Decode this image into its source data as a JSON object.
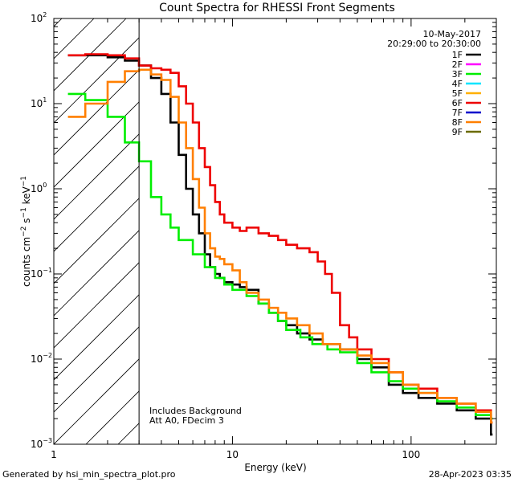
{
  "chart_data": {
    "type": "line",
    "title": "Count Spectra for RHESSI Front Segments",
    "xlabel": "Energy (keV)",
    "ylabel_parts": {
      "base": "counts cm",
      "exp1": "−2",
      "mid1": " s",
      "exp2": "−1",
      "mid2": " keV",
      "exp3": "−1"
    },
    "xscale": "log",
    "yscale": "log",
    "xlim": [
      1,
      300
    ],
    "ylim": [
      0.001,
      100
    ],
    "x_ticks": [
      {
        "value": 1,
        "label": "1"
      },
      {
        "value": 10,
        "label": "10"
      },
      {
        "value": 100,
        "label": "100"
      }
    ],
    "y_ticks": [
      {
        "value": 0.001,
        "base": "10",
        "exp": "−3"
      },
      {
        "value": 0.01,
        "base": "10",
        "exp": "−2"
      },
      {
        "value": 0.1,
        "base": "10",
        "exp": "−1"
      },
      {
        "value": 1,
        "base": "10",
        "exp": "0"
      },
      {
        "value": 10,
        "base": "10",
        "exp": "1"
      },
      {
        "value": 100,
        "base": "10",
        "exp": "2"
      }
    ],
    "date": "10-May-2017",
    "time_range": "20:29:00 to 20:30:00",
    "shaded_region": {
      "x_from": 1,
      "x_to": 3,
      "style": "hatched"
    },
    "annotations": [
      "Includes Background",
      "Att A0, FDecim 3"
    ],
    "legend": [
      {
        "name": "1F",
        "color": "#000000"
      },
      {
        "name": "2F",
        "color": "#ff00ff"
      },
      {
        "name": "3F",
        "color": "#00ee00"
      },
      {
        "name": "4F",
        "color": "#00e5ff"
      },
      {
        "name": "5F",
        "color": "#ffb000"
      },
      {
        "name": "6F",
        "color": "#ee0000"
      },
      {
        "name": "7F",
        "color": "#0000cc"
      },
      {
        "name": "8F",
        "color": "#ff7f00"
      },
      {
        "name": "9F",
        "color": "#6b6b00"
      }
    ],
    "series": [
      {
        "name": "1F",
        "color": "#000000",
        "points": [
          [
            1.2,
            37
          ],
          [
            1.5,
            37
          ],
          [
            2,
            35
          ],
          [
            2.5,
            32
          ],
          [
            3,
            28
          ],
          [
            3.5,
            20
          ],
          [
            4,
            13
          ],
          [
            4.5,
            6
          ],
          [
            5,
            2.5
          ],
          [
            5.5,
            1.0
          ],
          [
            6,
            0.5
          ],
          [
            6.5,
            0.3
          ],
          [
            7,
            0.17
          ],
          [
            7.5,
            0.12
          ],
          [
            8,
            0.1
          ],
          [
            8.5,
            0.09
          ],
          [
            9,
            0.08
          ],
          [
            10,
            0.075
          ],
          [
            11,
            0.07
          ],
          [
            12,
            0.065
          ],
          [
            14,
            0.045
          ],
          [
            16,
            0.035
          ],
          [
            18,
            0.028
          ],
          [
            20,
            0.025
          ],
          [
            23,
            0.02
          ],
          [
            27,
            0.017
          ],
          [
            32,
            0.015
          ],
          [
            40,
            0.013
          ],
          [
            50,
            0.01
          ],
          [
            60,
            0.008
          ],
          [
            75,
            0.005
          ],
          [
            90,
            0.004
          ],
          [
            110,
            0.0035
          ],
          [
            140,
            0.003
          ],
          [
            180,
            0.0025
          ],
          [
            230,
            0.002
          ],
          [
            280,
            0.0013
          ]
        ]
      },
      {
        "name": "3F",
        "color": "#00ee00",
        "points": [
          [
            1.2,
            13
          ],
          [
            1.5,
            11
          ],
          [
            2,
            7
          ],
          [
            2.5,
            3.5
          ],
          [
            3,
            2.1
          ],
          [
            3.5,
            0.8
          ],
          [
            4,
            0.5
          ],
          [
            4.5,
            0.35
          ],
          [
            5,
            0.25
          ],
          [
            6,
            0.17
          ],
          [
            7,
            0.12
          ],
          [
            8,
            0.09
          ],
          [
            9,
            0.075
          ],
          [
            10,
            0.065
          ],
          [
            12,
            0.055
          ],
          [
            14,
            0.045
          ],
          [
            16,
            0.035
          ],
          [
            18,
            0.028
          ],
          [
            20,
            0.022
          ],
          [
            24,
            0.018
          ],
          [
            28,
            0.015
          ],
          [
            34,
            0.013
          ],
          [
            40,
            0.012
          ],
          [
            50,
            0.009
          ],
          [
            60,
            0.007
          ],
          [
            75,
            0.0055
          ],
          [
            90,
            0.0045
          ],
          [
            110,
            0.004
          ],
          [
            140,
            0.0032
          ],
          [
            180,
            0.0027
          ],
          [
            230,
            0.0022
          ],
          [
            280,
            0.002
          ]
        ]
      },
      {
        "name": "6F",
        "color": "#ee0000",
        "points": [
          [
            1.2,
            37
          ],
          [
            1.5,
            38
          ],
          [
            2,
            37
          ],
          [
            2.5,
            34
          ],
          [
            3,
            28
          ],
          [
            3.5,
            26
          ],
          [
            4,
            25
          ],
          [
            4.5,
            23
          ],
          [
            5,
            16
          ],
          [
            5.5,
            10
          ],
          [
            6,
            6
          ],
          [
            6.5,
            3
          ],
          [
            7,
            1.8
          ],
          [
            7.5,
            1.1
          ],
          [
            8,
            0.7
          ],
          [
            8.5,
            0.5
          ],
          [
            9,
            0.4
          ],
          [
            10,
            0.35
          ],
          [
            11,
            0.32
          ],
          [
            12,
            0.35
          ],
          [
            14,
            0.3
          ],
          [
            16,
            0.28
          ],
          [
            18,
            0.25
          ],
          [
            20,
            0.22
          ],
          [
            23,
            0.2
          ],
          [
            27,
            0.18
          ],
          [
            30,
            0.14
          ],
          [
            33,
            0.1
          ],
          [
            36,
            0.06
          ],
          [
            40,
            0.025
          ],
          [
            45,
            0.018
          ],
          [
            50,
            0.013
          ],
          [
            60,
            0.01
          ],
          [
            75,
            0.007
          ],
          [
            90,
            0.005
          ],
          [
            110,
            0.0045
          ],
          [
            140,
            0.0035
          ],
          [
            180,
            0.003
          ],
          [
            230,
            0.0025
          ],
          [
            280,
            0.0018
          ]
        ]
      },
      {
        "name": "8F",
        "color": "#ff7f00",
        "points": [
          [
            1.2,
            7
          ],
          [
            1.5,
            10
          ],
          [
            2,
            18
          ],
          [
            2.5,
            24
          ],
          [
            3,
            25
          ],
          [
            3.5,
            22
          ],
          [
            4,
            19
          ],
          [
            4.5,
            12
          ],
          [
            5,
            6
          ],
          [
            5.5,
            3
          ],
          [
            6,
            1.3
          ],
          [
            6.5,
            0.6
          ],
          [
            7,
            0.3
          ],
          [
            7.5,
            0.2
          ],
          [
            8,
            0.16
          ],
          [
            8.5,
            0.15
          ],
          [
            9,
            0.13
          ],
          [
            10,
            0.11
          ],
          [
            11,
            0.08
          ],
          [
            12,
            0.06
          ],
          [
            14,
            0.05
          ],
          [
            16,
            0.04
          ],
          [
            18,
            0.035
          ],
          [
            20,
            0.03
          ],
          [
            23,
            0.025
          ],
          [
            27,
            0.02
          ],
          [
            32,
            0.015
          ],
          [
            40,
            0.013
          ],
          [
            50,
            0.011
          ],
          [
            60,
            0.009
          ],
          [
            75,
            0.007
          ],
          [
            90,
            0.005
          ],
          [
            110,
            0.004
          ],
          [
            140,
            0.0035
          ],
          [
            180,
            0.003
          ],
          [
            230,
            0.0024
          ],
          [
            280,
            0.0018
          ]
        ]
      }
    ]
  },
  "footer": {
    "left": "Generated by hsi_min_spectra_plot.pro",
    "right": "28-Apr-2023 03:35"
  }
}
